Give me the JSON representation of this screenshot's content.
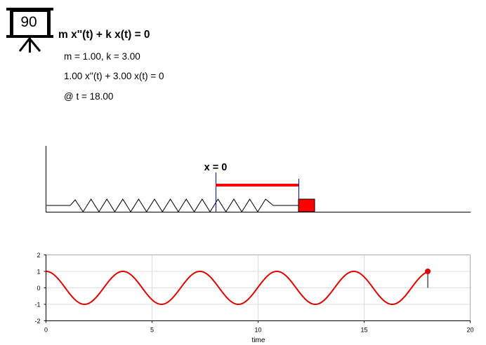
{
  "board": {
    "number": "90"
  },
  "equation": {
    "title": "m x''(t) + k x(t) = 0",
    "params": "m = 1.00, k = 3.00",
    "substituted": "1.00 x''(t) + 3.00 x(t) = 0",
    "time": "@ t = 18.00"
  },
  "spring_panel": {
    "equilibrium_label": "x = 0",
    "displacement": 1.0,
    "colors": {
      "mass": "#ff0000",
      "displacement_bar": "#ff0000",
      "markers": "#0000cc"
    }
  },
  "chart_data": {
    "type": "line",
    "xlabel": "time",
    "ylabel": "",
    "xlim": [
      0,
      20
    ],
    "ylim": [
      -2,
      2
    ],
    "xticks": [
      "0",
      "5",
      "10",
      "15",
      "20"
    ],
    "yticks": [
      "2",
      "1",
      "0",
      "-1",
      "-2"
    ],
    "grid": true,
    "series": [
      {
        "function": "cos(sqrt(k/m) * t)",
        "k": 3.0,
        "m": 1.0,
        "amplitude": 1.0,
        "t_start": 0,
        "t_end": 18.0,
        "color": "#dd0000"
      }
    ],
    "current_point": {
      "t": 18.0,
      "x": 1.0
    }
  }
}
